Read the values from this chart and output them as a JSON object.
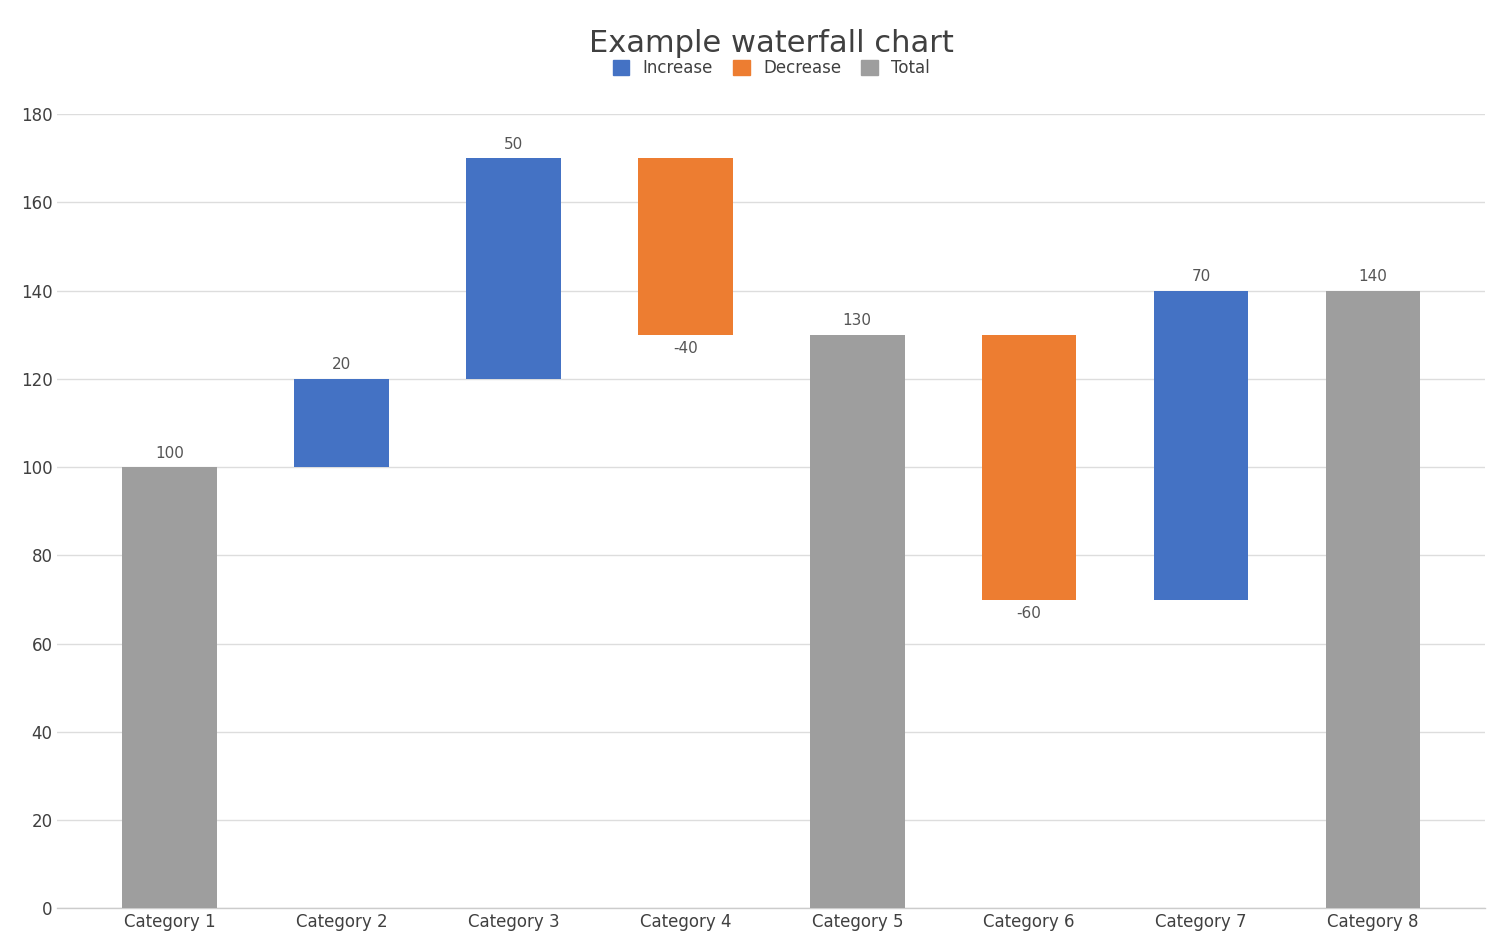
{
  "title": "Example waterfall chart",
  "categories": [
    "Category 1",
    "Category 2",
    "Category 3",
    "Category 4",
    "Category 5",
    "Category 6",
    "Category 7",
    "Category 8"
  ],
  "bar_types": [
    "total",
    "increase",
    "increase",
    "decrease",
    "total",
    "decrease",
    "increase",
    "total"
  ],
  "bar_bottoms": [
    0,
    100,
    120,
    130,
    0,
    70,
    70,
    0
  ],
  "bar_heights": [
    100,
    20,
    50,
    40,
    130,
    60,
    70,
    140
  ],
  "annotations": [
    "100",
    "20",
    "50",
    "-40",
    "130",
    "-60",
    "70",
    "140"
  ],
  "color_increase": "#4472C4",
  "color_decrease": "#ED7D31",
  "color_total": "#9E9E9E",
  "ylim": [
    0,
    180
  ],
  "yticks": [
    0,
    20,
    40,
    60,
    80,
    100,
    120,
    140,
    160,
    180
  ],
  "background_color": "#FFFFFF",
  "title_fontsize": 22,
  "legend_labels": [
    "Increase",
    "Decrease",
    "Total"
  ],
  "bar_width": 0.55
}
